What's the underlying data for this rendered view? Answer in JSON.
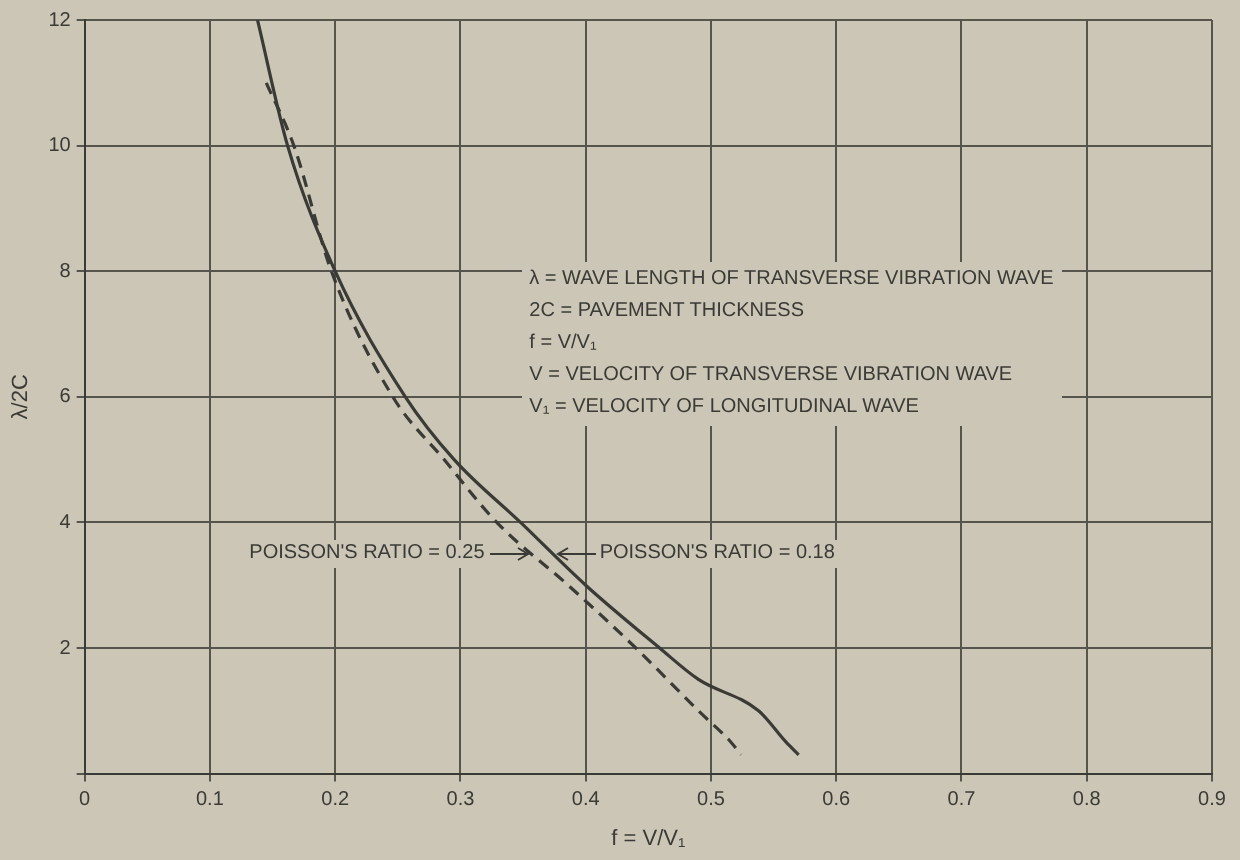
{
  "chart_data": {
    "type": "line",
    "xlabel": "f = V/V₁",
    "ylabel": "λ/2C",
    "xlim": [
      0,
      0.9
    ],
    "xticks": [
      0,
      0.1,
      0.2,
      0.3,
      0.4,
      0.5,
      0.6,
      0.7,
      0.8,
      0.9
    ],
    "ylim": [
      0,
      12
    ],
    "yticks": [
      {
        "value": 0,
        "label": null
      },
      2,
      4,
      6,
      8,
      10,
      12
    ],
    "grid": true,
    "legend": false,
    "marker": "none",
    "series": [
      {
        "color": "#3a3a36",
        "line_style": "solid",
        "x": [
          0.138,
          0.162,
          0.2,
          0.256,
          0.295,
          0.348,
          0.4,
          0.459,
          0.49,
          0.538,
          0.56,
          0.57
        ],
        "values": [
          12,
          10,
          8,
          6,
          5,
          4,
          3,
          2,
          1.5,
          1,
          0.5,
          0.3
        ]
      },
      {
        "color": "#3a3a36",
        "line_style": "dashed",
        "x": [
          0.145,
          0.167,
          0.197,
          0.246,
          0.287,
          0.329,
          0.386,
          0.44,
          0.49,
          0.516,
          0.524
        ],
        "values": [
          11,
          10,
          8,
          6,
          5,
          4,
          3,
          2,
          1,
          0.5,
          0.3
        ]
      }
    ],
    "annotations": [
      "λ = WAVE LENGTH OF TRANSVERSE VIBRATION WAVE",
      "2C = PAVEMENT THICKNESS",
      "f = V/V₁",
      "V = VELOCITY OF TRANSVERSE VIBRATION WAVE",
      "V₁ = VELOCITY OF LONGITUDINAL WAVE",
      {
        "text": "POISSON'S RATIO = 0.25",
        "x": 0.355,
        "y": 3.5
      },
      {
        "text": "POISSON'S RATIO = 0.18",
        "x": 0.376,
        "y": 3.5
      }
    ]
  }
}
